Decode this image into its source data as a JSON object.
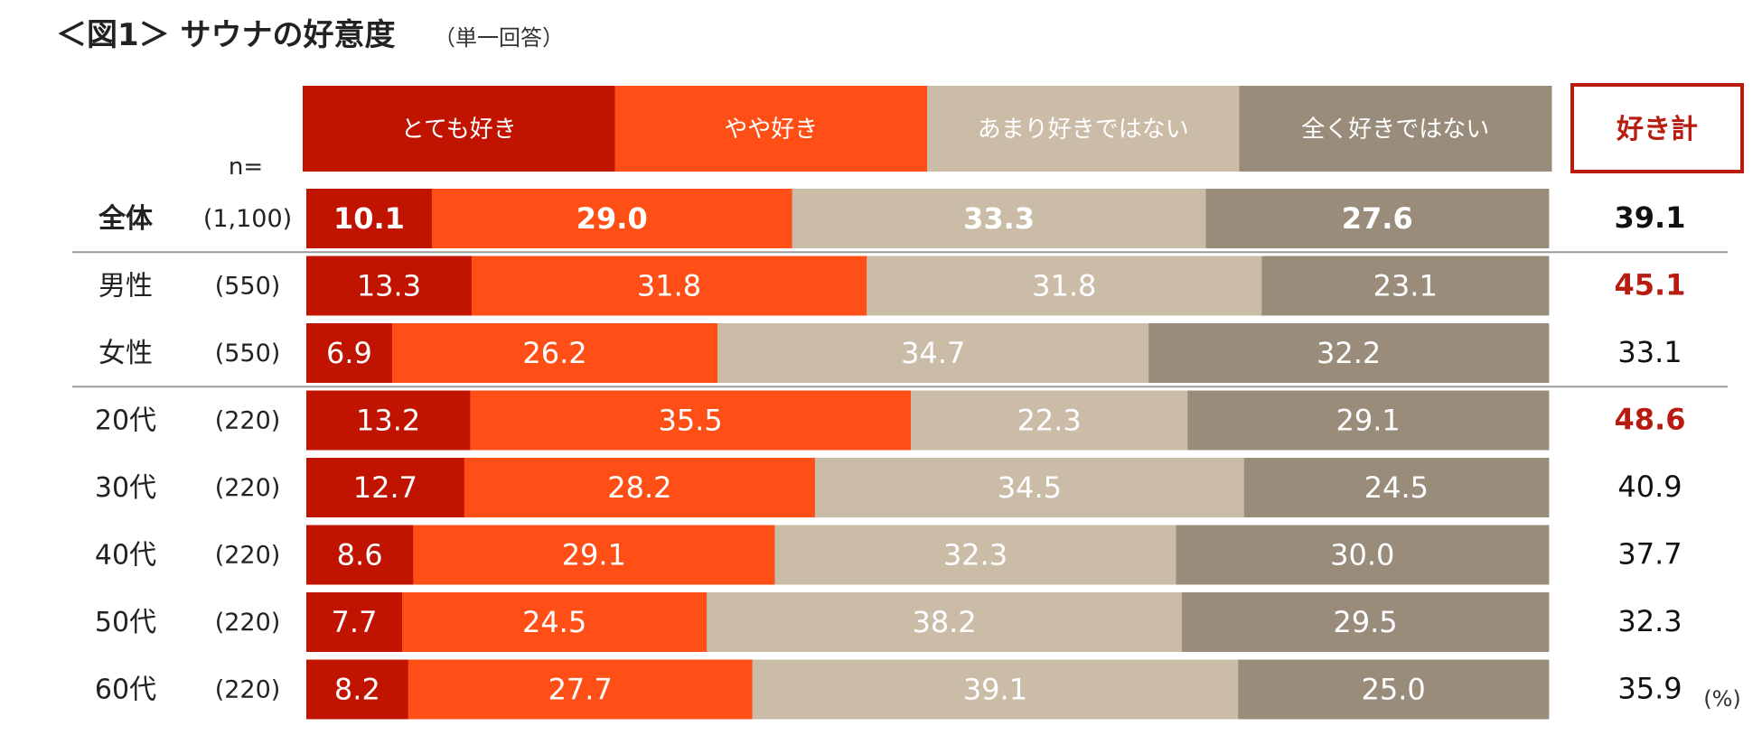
{
  "chart_data": {
    "type": "bar",
    "orientation": "horizontal-stacked-100",
    "title": "＜図1＞ サウナの好意度",
    "subtitle": "（単一回答）",
    "n_label": "n=",
    "unit": "(%)",
    "total_header": "好き計",
    "legend": [
      "とても好き",
      "やや好き",
      "あまり好きではない",
      "全く好きではない"
    ],
    "colors": [
      "#c01400",
      "#ff4f17",
      "#cbbca8",
      "#9a8c7a"
    ],
    "highlight_color": "#b81c10",
    "rows": [
      {
        "label": "全体",
        "n": "(1,100)",
        "values": [
          10.1,
          29.0,
          33.3,
          27.6
        ],
        "total": 39.1,
        "bold": true,
        "highlight": false
      },
      {
        "label": "男性",
        "n": "(550)",
        "values": [
          13.3,
          31.8,
          31.8,
          23.1
        ],
        "total": 45.1,
        "bold": false,
        "highlight": true
      },
      {
        "label": "女性",
        "n": "(550)",
        "values": [
          6.9,
          26.2,
          34.7,
          32.2
        ],
        "total": 33.1,
        "bold": false,
        "highlight": false
      },
      {
        "label": "20代",
        "n": "(220)",
        "values": [
          13.2,
          35.5,
          22.3,
          29.1
        ],
        "total": 48.6,
        "bold": false,
        "highlight": true
      },
      {
        "label": "30代",
        "n": "(220)",
        "values": [
          12.7,
          28.2,
          34.5,
          24.5
        ],
        "total": 40.9,
        "bold": false,
        "highlight": false
      },
      {
        "label": "40代",
        "n": "(220)",
        "values": [
          8.6,
          29.1,
          32.3,
          30.0
        ],
        "total": 37.7,
        "bold": false,
        "highlight": false
      },
      {
        "label": "50代",
        "n": "(220)",
        "values": [
          7.7,
          24.5,
          38.2,
          29.5
        ],
        "total": 32.3,
        "bold": false,
        "highlight": false
      },
      {
        "label": "60代",
        "n": "(220)",
        "values": [
          8.2,
          27.7,
          39.1,
          25.0
        ],
        "total": 35.9,
        "bold": false,
        "highlight": false
      }
    ]
  }
}
